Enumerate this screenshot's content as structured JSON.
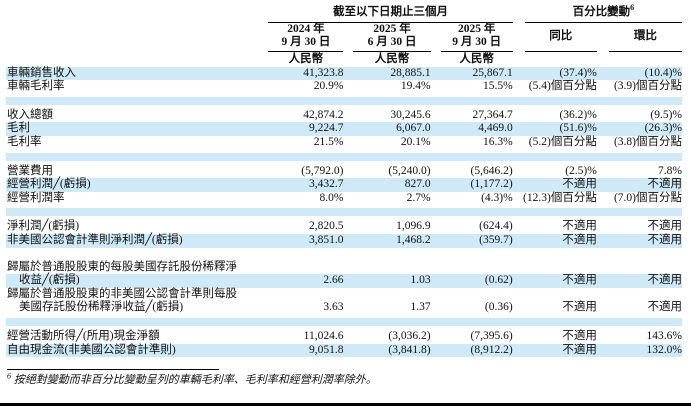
{
  "colors": {
    "highlight": "#cfeaf6",
    "rule": "#000000",
    "page_border": "#000000"
  },
  "header": {
    "period_group": "截至以下日期止三個月",
    "pct_group": "百分比變動",
    "pct_sup": "6",
    "dates": [
      {
        "line1": "2024 年",
        "line2": "9 月 30 日"
      },
      {
        "line1": "2025 年",
        "line2": "6 月 30 日"
      },
      {
        "line1": "2025 年",
        "line2": "9 月 30 日"
      }
    ],
    "currency_label": "人民幣",
    "yoy_label": "同比",
    "qoq_label": "環比"
  },
  "table": {
    "rows": [
      {
        "type": "data",
        "bg": "blue",
        "label": "車輛銷售收入",
        "values": [
          "41,323.8",
          "28,885.1",
          "25,867.1",
          "(37.4)%",
          "(10.4)%"
        ]
      },
      {
        "type": "data",
        "bg": "white",
        "label": "車輛毛利率",
        "values": [
          "20.9%",
          "19.4%",
          "15.5%",
          "(5.4)個百分點",
          "(3.9)個百分點"
        ]
      },
      {
        "type": "spacer",
        "bg": "blue"
      },
      {
        "type": "data",
        "bg": "white",
        "label": "收入總額",
        "values": [
          "42,874.2",
          "30,245.6",
          "27,364.7",
          "(36.2)%",
          "(9.5)%"
        ]
      },
      {
        "type": "data",
        "bg": "blue",
        "label": "毛利",
        "values": [
          "9,224.7",
          "6,067.0",
          "4,469.0",
          "(51.6)%",
          "(26.3)%"
        ]
      },
      {
        "type": "data",
        "bg": "white",
        "label": "毛利率",
        "values": [
          "21.5%",
          "20.1%",
          "16.3%",
          "(5.2)個百分點",
          "(3.8)個百分點"
        ]
      },
      {
        "type": "spacer",
        "bg": "blue"
      },
      {
        "type": "data",
        "bg": "white",
        "label": "營業費用",
        "values": [
          "(5,792.0)",
          "(5,240.0)",
          "(5,646.2)",
          "(2.5)%",
          "7.8%"
        ]
      },
      {
        "type": "data",
        "bg": "blue",
        "label": "經營利潤╱(虧損)",
        "values": [
          "3,432.7",
          "827.0",
          "(1,177.2)",
          "不適用",
          "不適用"
        ]
      },
      {
        "type": "data",
        "bg": "white",
        "label": "經營利潤率",
        "values": [
          "8.0%",
          "2.7%",
          "(4.3)%",
          "(12.3)個百分點",
          "(7.0)個百分點"
        ]
      },
      {
        "type": "spacer",
        "bg": "blue"
      },
      {
        "type": "data",
        "bg": "white",
        "label": "淨利潤╱(虧損)",
        "values": [
          "2,820.5",
          "1,096.9",
          "(624.4)",
          "不適用",
          "不適用"
        ]
      },
      {
        "type": "data",
        "bg": "blue",
        "label": "非美國公認會計準則淨利潤╱(虧損)",
        "values": [
          "3,851.0",
          "1,468.2",
          "(359.7)",
          "不適用",
          "不適用"
        ]
      },
      {
        "type": "spacer",
        "bg": "white"
      },
      {
        "type": "label",
        "bg": "white",
        "label": "歸屬於普通股股東的每股美國存託股份稀釋淨"
      },
      {
        "type": "data",
        "bg": "blue",
        "indent": true,
        "label": "收益╱(虧損)",
        "values": [
          "2.66",
          "1.03",
          "(0.62)",
          "不適用",
          "不適用"
        ]
      },
      {
        "type": "label",
        "bg": "white",
        "label": "歸屬於普通股股東的非美國公認會計準則每股"
      },
      {
        "type": "data",
        "bg": "white",
        "indent": true,
        "label": "美國存託股份稀釋淨收益╱(虧損)",
        "values": [
          "3.63",
          "1.37",
          "(0.36)",
          "不適用",
          "不適用"
        ]
      },
      {
        "type": "spacer",
        "bg": "blue"
      },
      {
        "type": "data",
        "bg": "white",
        "label": "經營活動所得╱(所用)現金淨額",
        "values": [
          "11,024.6",
          "(3,036.2)",
          "(7,395.6)",
          "不適用",
          "143.6%"
        ]
      },
      {
        "type": "data",
        "bg": "blue",
        "label": "自由現金流(非美國公認會計準則)",
        "values": [
          "9,051.8",
          "(3,841.8)",
          "(8,912.2)",
          "不適用",
          "132.0%"
        ]
      }
    ]
  },
  "footnote": {
    "sup": "6",
    "text": "按絕對變動而非百分比變動呈列的車輛毛利率、毛利率和經營利潤率除外。"
  }
}
